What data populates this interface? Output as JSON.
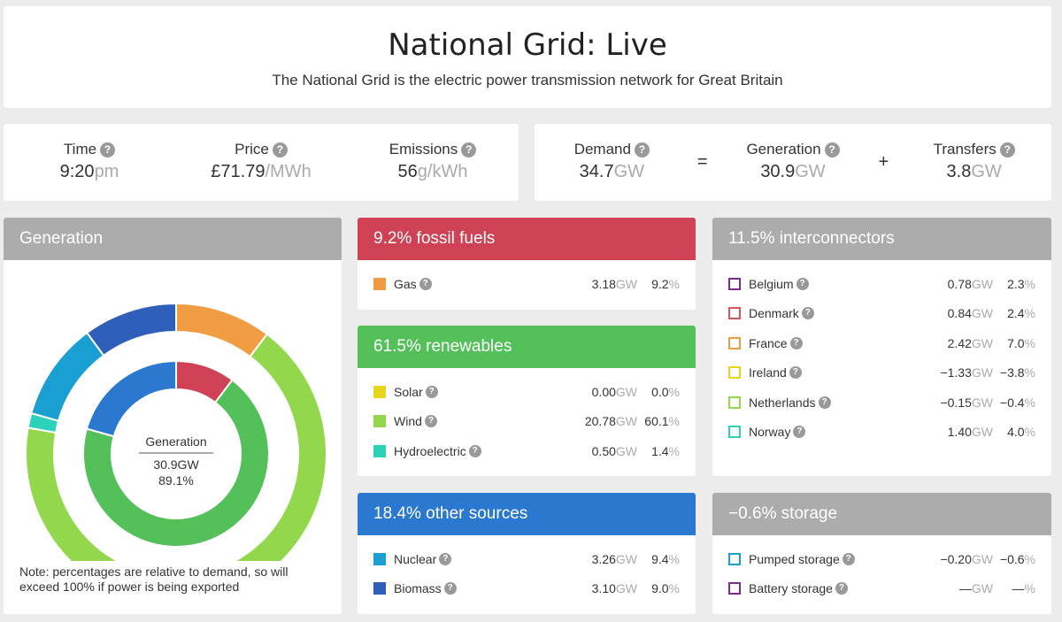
{
  "header": {
    "title": "National Grid: Live",
    "subtitle": "The National Grid is the electric power transmission network for Great Britain"
  },
  "stats": {
    "time": {
      "label": "Time",
      "value": "9:20",
      "unit": "pm"
    },
    "price": {
      "label": "Price",
      "value": "£71.79",
      "unit": "/MWh"
    },
    "emissions": {
      "label": "Emissions",
      "value": "56",
      "unit": "g/kWh"
    },
    "demand": {
      "label": "Demand",
      "value": "34.7",
      "unit": "GW"
    },
    "equals": "=",
    "generation": {
      "label": "Generation",
      "value": "30.9",
      "unit": "GW"
    },
    "plus": "+",
    "transfers": {
      "label": "Transfers",
      "value": "3.8",
      "unit": "GW"
    }
  },
  "generation_panel": {
    "title": "Generation",
    "center_label": "Generation",
    "center_gw": "30.9GW",
    "center_pct": "89.1%",
    "note": "Note: percentages are relative to demand, so will exceed 100% if power is being exported"
  },
  "gw_unit": "GW",
  "pct_unit": "%",
  "fossil": {
    "title": "9.2% fossil fuels",
    "color": "#cf4256",
    "rows": [
      {
        "name": "Gas",
        "gw": "3.18",
        "pct": "9.2",
        "color": "#ef9c42"
      }
    ]
  },
  "renewables": {
    "title": "61.5% renewables",
    "color": "#53c05a",
    "rows": [
      {
        "name": "Solar",
        "gw": "0.00",
        "pct": "0.0",
        "color": "#e8d51c"
      },
      {
        "name": "Wind",
        "gw": "20.78",
        "pct": "60.1",
        "color": "#93d84c"
      },
      {
        "name": "Hydroelectric",
        "gw": "0.50",
        "pct": "1.4",
        "color": "#2bd1b9"
      }
    ]
  },
  "other": {
    "title": "18.4% other sources",
    "color": "#2a78d0",
    "rows": [
      {
        "name": "Nuclear",
        "gw": "3.26",
        "pct": "9.4",
        "color": "#1a9fd2"
      },
      {
        "name": "Biomass",
        "gw": "3.10",
        "pct": "9.0",
        "color": "#2f5fb8"
      }
    ]
  },
  "interconnectors": {
    "title": "11.5% interconnectors",
    "color": "#acacac",
    "rows": [
      {
        "name": "Belgium",
        "gw": "0.78",
        "pct": "2.3",
        "color": "#7c2d8a"
      },
      {
        "name": "Denmark",
        "gw": "0.84",
        "pct": "2.4",
        "color": "#d9525c"
      },
      {
        "name": "France",
        "gw": "2.42",
        "pct": "7.0",
        "color": "#ef9c42"
      },
      {
        "name": "Ireland",
        "gw": "−1.33",
        "pct": "−3.8",
        "color": "#e8d51c"
      },
      {
        "name": "Netherlands",
        "gw": "−0.15",
        "pct": "−0.4",
        "color": "#93d84c"
      },
      {
        "name": "Norway",
        "gw": "1.40",
        "pct": "4.0",
        "color": "#2bd1b9"
      }
    ]
  },
  "storage": {
    "title": "−0.6% storage",
    "color": "#acacac",
    "rows": [
      {
        "name": "Pumped storage",
        "gw": "−0.20",
        "pct": "−0.6",
        "color": "#1a9fd2"
      },
      {
        "name": "Battery storage",
        "gw": "—",
        "pct": "—",
        "color": "#7c2d8a"
      }
    ]
  },
  "chart_data": {
    "type": "pie",
    "title": "Generation",
    "inner_ring": [
      {
        "name": "fossil fuels",
        "value": 9.2,
        "color": "#cf4256"
      },
      {
        "name": "renewables",
        "value": 61.5,
        "color": "#53c05a"
      },
      {
        "name": "other sources",
        "value": 18.4,
        "color": "#2a78d0"
      }
    ],
    "outer_ring": [
      {
        "name": "Gas",
        "value": 9.2,
        "color": "#ef9c42"
      },
      {
        "name": "Solar",
        "value": 0.0,
        "color": "#e8d51c"
      },
      {
        "name": "Wind",
        "value": 60.1,
        "color": "#93d84c"
      },
      {
        "name": "Hydroelectric",
        "value": 1.4,
        "color": "#2bd1b9"
      },
      {
        "name": "Nuclear",
        "value": 9.4,
        "color": "#1a9fd2"
      },
      {
        "name": "Biomass",
        "value": 9.0,
        "color": "#2f5fb8"
      }
    ]
  }
}
